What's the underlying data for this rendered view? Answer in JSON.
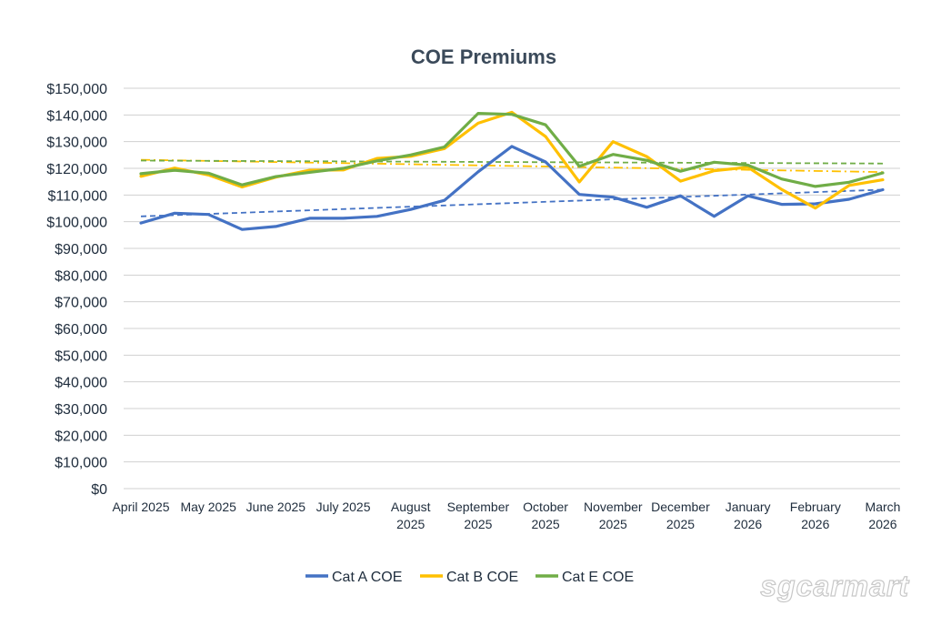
{
  "chart_data": {
    "type": "line",
    "title": "COE Premiums",
    "xlabel": "",
    "ylabel": "",
    "ylim": [
      0,
      150000
    ],
    "y_ticks": [
      "$0",
      "$10,000",
      "$20,000",
      "$30,000",
      "$40,000",
      "$50,000",
      "$60,000",
      "$70,000",
      "$80,000",
      "$90,000",
      "$100,000",
      "$110,000",
      "$120,000",
      "$130,000",
      "$140,000",
      "$150,000"
    ],
    "x_tick_labels": [
      [
        "April 2025"
      ],
      [
        "May 2025"
      ],
      [
        "June 2025"
      ],
      [
        "July 2025"
      ],
      [
        "August",
        "2025"
      ],
      [
        "September",
        "2025"
      ],
      [
        "October",
        "2025"
      ],
      [
        "November",
        "2025"
      ],
      [
        "December",
        "2025"
      ],
      [
        "January",
        "2026"
      ],
      [
        "February",
        "2026"
      ],
      [
        "March",
        "2026"
      ]
    ],
    "grid": "horizontal",
    "legend_position": "bottom",
    "series": [
      {
        "name": "Cat A COE",
        "color": "#4472c4",
        "values": [
          99500,
          103200,
          102700,
          97100,
          98200,
          101300,
          101300,
          102000,
          104600,
          108000,
          118700,
          128200,
          122400,
          110200,
          109200,
          105400,
          109700,
          102000,
          109700,
          106500,
          106700,
          108400,
          112000
        ],
        "trend": [
          102000,
          112000
        ],
        "trend_style": "dashed"
      },
      {
        "name": "Cat B COE",
        "color": "#ffc000",
        "values": [
          117000,
          120100,
          117500,
          113000,
          116700,
          119300,
          119400,
          123700,
          124500,
          127400,
          136900,
          141000,
          131900,
          114900,
          130000,
          124400,
          115200,
          119100,
          120400,
          112100,
          105100,
          113600,
          115700
        ],
        "trend": [
          123200,
          118600
        ],
        "trend_style": "dashdot"
      },
      {
        "name": "Cat E COE",
        "color": "#70ad47",
        "values": [
          118000,
          119300,
          118200,
          113800,
          116900,
          118500,
          120000,
          122800,
          125000,
          128000,
          140600,
          140200,
          136300,
          120800,
          125200,
          123000,
          118900,
          122300,
          121200,
          116000,
          113200,
          114800,
          118300
        ],
        "trend": [
          122900,
          121800
        ],
        "trend_style": "dashed"
      }
    ]
  },
  "watermark": "sgcarmart"
}
